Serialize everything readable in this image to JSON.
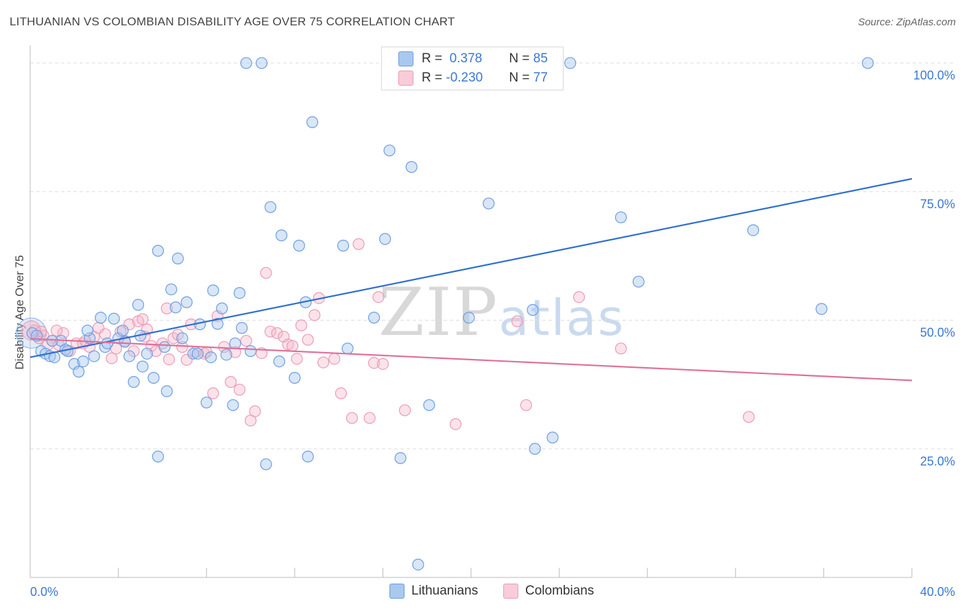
{
  "title": "LITHUANIAN VS COLOMBIAN DISABILITY AGE OVER 75 CORRELATION CHART",
  "source": "Source: ZipAtlas.com",
  "watermark": {
    "zip": "ZIP",
    "atlas": "atlas"
  },
  "colors": {
    "lithuanians_fill": "#a9c8ee",
    "lithuanians_line": "#2e6fd0",
    "colombians_fill": "#f5b8cb",
    "colombians_line": "#e0709a",
    "tick_label": "#3a78d4",
    "grid": "#dddddd"
  },
  "legend": {
    "rows": [
      {
        "r_label": "R = ",
        "r_value": " 0.378",
        "n_label": "N = ",
        "n_value": "85"
      },
      {
        "r_label": "R = ",
        "r_value": "-0.230",
        "n_label": "N = ",
        "n_value": "77"
      }
    ]
  },
  "chart_data": {
    "type": "scatter",
    "title": "LITHUANIAN VS COLOMBIAN DISABILITY AGE OVER 75 CORRELATION CHART",
    "xlabel": "",
    "ylabel": "Disability Age Over 75",
    "xlim": [
      0,
      40
    ],
    "ylim": [
      0,
      104
    ],
    "x_tick_labels": [
      "0.0%",
      "40.0%"
    ],
    "y_tick_labels": [
      {
        "value": 25,
        "label": "25.0%"
      },
      {
        "value": 50,
        "label": "50.0%"
      },
      {
        "value": 75,
        "label": "75.0%"
      },
      {
        "value": 100,
        "label": "100.0%"
      }
    ],
    "grid": true,
    "legend_position": "top-center",
    "series": [
      {
        "name": "Lithuanians",
        "color": "#a9c8ee",
        "trend": {
          "x": [
            0,
            40
          ],
          "y": [
            42.8,
            77.5
          ]
        },
        "points": [
          [
            0.1,
            47.5
          ],
          [
            0.5,
            44
          ],
          [
            0.7,
            43.5
          ],
          [
            0.9,
            43
          ],
          [
            1.1,
            42.8
          ],
          [
            1.4,
            46
          ],
          [
            1.6,
            44.3
          ],
          [
            1.7,
            44
          ],
          [
            2.0,
            41.5
          ],
          [
            2.2,
            40
          ],
          [
            2.4,
            42
          ],
          [
            2.7,
            46.5
          ],
          [
            2.9,
            43
          ],
          [
            3.2,
            50.5
          ],
          [
            3.4,
            44.8
          ],
          [
            3.5,
            45.5
          ],
          [
            3.8,
            50.3
          ],
          [
            4.0,
            46.5
          ],
          [
            4.2,
            48
          ],
          [
            4.3,
            45.8
          ],
          [
            4.5,
            43
          ],
          [
            4.7,
            38
          ],
          [
            4.9,
            53
          ],
          [
            5.1,
            41
          ],
          [
            5.3,
            43.5
          ],
          [
            5.6,
            38.8
          ],
          [
            5.8,
            63.5
          ],
          [
            5.8,
            23.5
          ],
          [
            6.1,
            44.8
          ],
          [
            6.2,
            36.2
          ],
          [
            6.4,
            56
          ],
          [
            6.6,
            52.5
          ],
          [
            6.7,
            62
          ],
          [
            6.9,
            46.5
          ],
          [
            7.1,
            53.5
          ],
          [
            7.4,
            43.5
          ],
          [
            7.6,
            43.5
          ],
          [
            7.7,
            49.2
          ],
          [
            8.0,
            34
          ],
          [
            8.2,
            42.8
          ],
          [
            8.3,
            55.8
          ],
          [
            8.5,
            49.3
          ],
          [
            8.7,
            52.3
          ],
          [
            8.9,
            43.3
          ],
          [
            9.2,
            33.5
          ],
          [
            9.3,
            45.5
          ],
          [
            9.5,
            55.3
          ],
          [
            9.6,
            48.5
          ],
          [
            9.8,
            100
          ],
          [
            10.0,
            44
          ],
          [
            10.5,
            100
          ],
          [
            10.7,
            22
          ],
          [
            10.9,
            72
          ],
          [
            11.3,
            42
          ],
          [
            11.4,
            66.5
          ],
          [
            12.0,
            38.8
          ],
          [
            12.2,
            64.5
          ],
          [
            12.5,
            53.5
          ],
          [
            12.6,
            23.5
          ],
          [
            12.8,
            88.5
          ],
          [
            14.2,
            64.5
          ],
          [
            14.4,
            44.5
          ],
          [
            15.6,
            50.5
          ],
          [
            16.1,
            65.8
          ],
          [
            16.3,
            83
          ],
          [
            16.8,
            23.2
          ],
          [
            17.3,
            79.8
          ],
          [
            17.6,
            2.5
          ],
          [
            18.1,
            33.5
          ],
          [
            19.9,
            50.5
          ],
          [
            20.8,
            72.7
          ],
          [
            22.0,
            100
          ],
          [
            22.8,
            52
          ],
          [
            22.9,
            25
          ],
          [
            23.7,
            27.2
          ],
          [
            24.5,
            100
          ],
          [
            26.8,
            70
          ],
          [
            27.6,
            57.5
          ],
          [
            32.8,
            67.5
          ],
          [
            35.9,
            52.2
          ],
          [
            38.0,
            100
          ],
          [
            0.3,
            47
          ],
          [
            1.0,
            46
          ],
          [
            2.6,
            48
          ],
          [
            5.0,
            47
          ]
        ]
      },
      {
        "name": "Colombians",
        "color": "#f5b8cb",
        "trend": {
          "x": [
            0,
            40
          ],
          "y": [
            46.4,
            38.3
          ]
        },
        "points": [
          [
            0.2,
            48
          ],
          [
            0.4,
            46.5
          ],
          [
            0.6,
            47
          ],
          [
            0.8,
            45.2
          ],
          [
            1.0,
            46
          ],
          [
            1.3,
            45.2
          ],
          [
            1.5,
            47.5
          ],
          [
            1.8,
            44
          ],
          [
            2.1,
            45.5
          ],
          [
            2.4,
            45.5
          ],
          [
            2.7,
            44.8
          ],
          [
            2.9,
            46.8
          ],
          [
            3.1,
            48.5
          ],
          [
            3.4,
            47.3
          ],
          [
            3.7,
            42.6
          ],
          [
            3.9,
            44.5
          ],
          [
            4.1,
            47.8
          ],
          [
            4.3,
            46
          ],
          [
            4.5,
            49.2
          ],
          [
            4.7,
            44
          ],
          [
            4.9,
            49.8
          ],
          [
            5.1,
            50.2
          ],
          [
            5.3,
            48.2
          ],
          [
            5.5,
            45
          ],
          [
            5.7,
            44
          ],
          [
            6.0,
            45.5
          ],
          [
            6.2,
            52.3
          ],
          [
            6.3,
            42.4
          ],
          [
            6.5,
            46.5
          ],
          [
            6.7,
            47.2
          ],
          [
            6.9,
            44.8
          ],
          [
            7.1,
            42.3
          ],
          [
            7.3,
            49.2
          ],
          [
            7.5,
            43.8
          ],
          [
            7.9,
            43.5
          ],
          [
            8.0,
            43.8
          ],
          [
            8.3,
            35.8
          ],
          [
            8.5,
            50.8
          ],
          [
            8.8,
            44.8
          ],
          [
            9.1,
            38
          ],
          [
            9.3,
            43.8
          ],
          [
            9.5,
            36.5
          ],
          [
            9.8,
            46
          ],
          [
            10.0,
            30.5
          ],
          [
            10.2,
            32.3
          ],
          [
            10.5,
            43.6
          ],
          [
            10.7,
            59.2
          ],
          [
            10.9,
            47.8
          ],
          [
            11.2,
            47.5
          ],
          [
            11.5,
            46.8
          ],
          [
            11.7,
            45.3
          ],
          [
            11.9,
            45
          ],
          [
            12.1,
            42.5
          ],
          [
            12.3,
            49
          ],
          [
            12.6,
            46.2
          ],
          [
            12.9,
            51
          ],
          [
            13.1,
            54.3
          ],
          [
            13.3,
            41.8
          ],
          [
            13.8,
            42.5
          ],
          [
            14.1,
            35.8
          ],
          [
            14.6,
            31
          ],
          [
            14.9,
            64.8
          ],
          [
            15.4,
            31
          ],
          [
            15.6,
            41.7
          ],
          [
            15.8,
            54.5
          ],
          [
            16.0,
            41.5
          ],
          [
            17.0,
            32.5
          ],
          [
            19.3,
            29.8
          ],
          [
            22.1,
            49.8
          ],
          [
            22.5,
            33.5
          ],
          [
            24.9,
            54.5
          ],
          [
            26.8,
            44.5
          ],
          [
            32.6,
            31.2
          ],
          [
            0.5,
            47.8
          ],
          [
            1.2,
            48
          ],
          [
            2.5,
            46
          ],
          [
            5.2,
            46.8
          ]
        ]
      }
    ]
  },
  "bottom_legend": [
    "Lithuanians",
    "Colombians"
  ]
}
